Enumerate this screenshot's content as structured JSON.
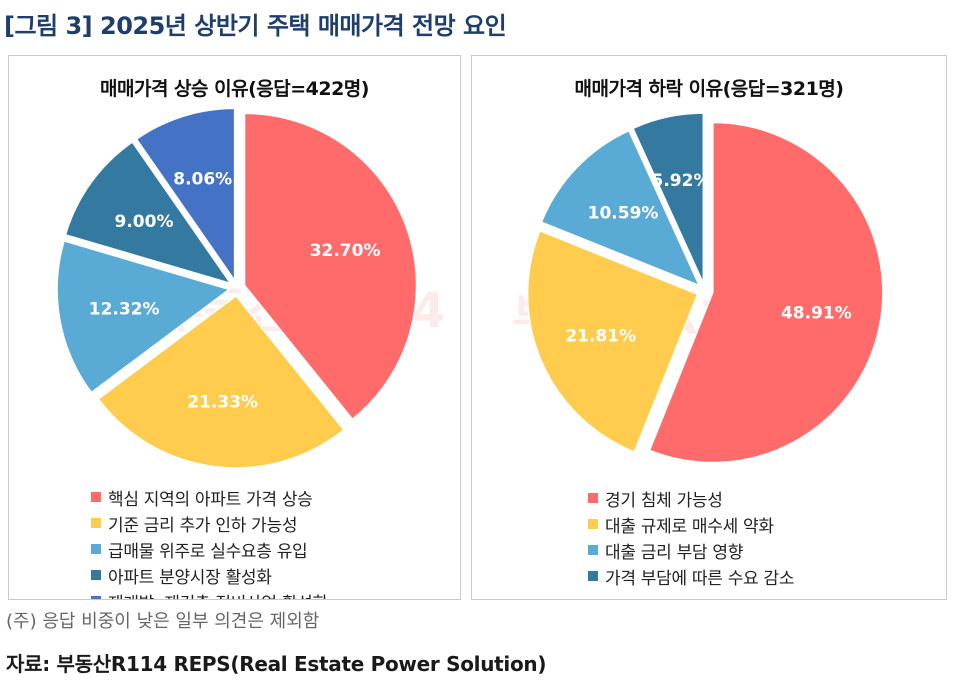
{
  "figure_title": "[그림 3] 2025년 상반기 주택 매매가격 전망 요인",
  "note": "(주) 응답 비중이 낮은 일부 의견은 제외함",
  "source": "자료: 부동산R114 REPS(Real Estate Power Solution)",
  "watermark": "부동산 R114",
  "chart_data": [
    {
      "type": "pie",
      "title": "매매가격 상승 이유(응답=422명)",
      "categories": [
        "핵심 지역의 아파트 가격 상승",
        "기준 금리 추가 인하 가능성",
        "급매물 위주로 실수요층 유입",
        "아파트 분양시장 활성화",
        "재개발, 재건축 정비사업 활성화"
      ],
      "values": [
        32.7,
        21.33,
        12.32,
        9.0,
        8.06
      ],
      "labels": [
        "32.70%",
        "21.33%",
        "12.32%",
        "9.00%",
        "8.06%"
      ],
      "colors": [
        "#ff6b6b",
        "#ffcc4d",
        "#5aaad6",
        "#3479a0",
        "#4472c4"
      ],
      "exploded": true,
      "legend_position": "bottom"
    },
    {
      "type": "pie",
      "title": "매매가격 하락 이유(응답=321명)",
      "categories": [
        "경기 침체 가능성",
        "대출 규제로 매수세 약화",
        "대출 금리 부담 영향",
        "가격 부담에 따른 수요 감소"
      ],
      "values": [
        48.91,
        21.81,
        10.59,
        5.92
      ],
      "labels": [
        "48.91%",
        "21.81%",
        "10.59%",
        "5.92%"
      ],
      "colors": [
        "#ff6b6b",
        "#ffcc4d",
        "#5aaad6",
        "#3479a0"
      ],
      "exploded": true,
      "legend_position": "bottom"
    }
  ]
}
